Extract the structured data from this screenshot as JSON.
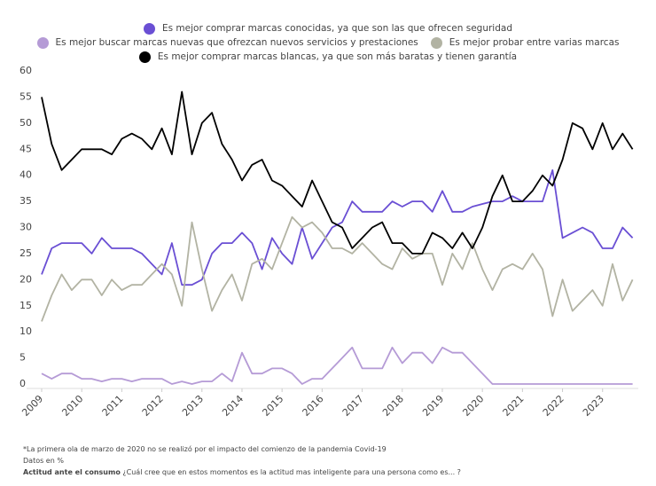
{
  "chart_data": {
    "type": "line",
    "x": [
      2009,
      2009.25,
      2009.5,
      2009.75,
      2010,
      2010.25,
      2010.5,
      2010.75,
      2011,
      2011.25,
      2011.5,
      2011.75,
      2012,
      2012.25,
      2012.5,
      2012.75,
      2013,
      2013.25,
      2013.5,
      2013.75,
      2014,
      2014.25,
      2014.5,
      2014.75,
      2015,
      2015.25,
      2015.5,
      2015.75,
      2016,
      2016.25,
      2016.5,
      2016.75,
      2017,
      2017.25,
      2017.5,
      2017.75,
      2018,
      2018.25,
      2018.5,
      2018.75,
      2019,
      2019.25,
      2019.5,
      2019.75,
      2020,
      2020.25,
      2020.5,
      2020.75,
      2021,
      2021.25,
      2021.5,
      2021.75,
      2022,
      2022.25,
      2022.5,
      2022.75,
      2023,
      2023.25,
      2023.5,
      2023.75
    ],
    "series": [
      {
        "name": "Es mejor comprar marcas conocidas, ya que son las que ofrecen seguridad",
        "color": "#6a4fd4",
        "values": [
          21,
          26,
          27,
          27,
          27,
          25,
          28,
          26,
          26,
          26,
          25,
          23,
          21,
          27,
          19,
          19,
          20,
          25,
          27,
          27,
          29,
          27,
          22,
          28,
          25,
          23,
          30,
          24,
          27,
          30,
          31,
          35,
          33,
          33,
          33,
          35,
          34,
          35,
          35,
          33,
          37,
          33,
          33,
          34,
          34.5,
          35,
          35,
          36,
          35,
          35,
          35,
          41,
          28,
          29,
          30,
          29,
          26,
          26,
          30,
          28
        ]
      },
      {
        "name": "Es mejor buscar marcas nuevas que ofrezcan nuevos servicios y prestaciones",
        "color": "#b59bd6",
        "values": [
          2,
          1,
          2,
          2,
          1,
          1,
          0.5,
          1,
          1,
          0.5,
          1,
          1,
          1,
          0,
          0.5,
          0,
          0.5,
          0.5,
          2,
          0.5,
          6,
          2,
          2,
          3,
          3,
          2,
          0,
          1,
          1,
          3,
          5,
          7,
          3,
          3,
          3,
          7,
          4,
          6,
          6,
          4,
          7,
          6,
          6,
          4,
          2,
          0,
          0,
          0,
          0,
          0,
          0,
          0,
          0,
          0,
          0,
          0,
          0,
          0,
          0,
          0
        ]
      },
      {
        "name": "Es mejor probar entre varias marcas",
        "color": "#b2b3a3",
        "values": [
          12,
          17,
          21,
          18,
          20,
          20,
          17,
          20,
          18,
          19,
          19,
          21,
          23,
          21,
          15,
          31,
          22,
          14,
          18,
          21,
          16,
          23,
          24,
          22,
          27,
          32,
          30,
          31,
          29,
          26,
          26,
          25,
          27,
          25,
          23,
          22,
          26,
          24,
          25,
          25,
          19,
          25,
          22,
          27,
          22,
          18,
          22,
          23,
          22,
          25,
          22,
          13,
          20,
          14,
          16,
          18,
          15,
          23,
          16,
          20
        ]
      },
      {
        "name": "Es mejor comprar marcas blancas, ya que son más baratas y tienen garantía",
        "color": "#000000",
        "values": [
          55,
          46,
          41,
          43,
          45,
          45,
          45,
          44,
          47,
          48,
          47,
          45,
          49,
          44,
          56,
          44,
          50,
          52,
          46,
          43,
          39,
          42,
          43,
          39,
          38,
          36,
          34,
          39,
          35,
          31,
          30,
          26,
          28,
          30,
          31,
          27,
          27,
          25,
          25,
          29,
          28,
          26,
          29,
          26,
          30,
          36,
          40,
          35,
          35,
          37,
          40,
          38,
          43,
          50,
          49,
          45,
          50,
          45,
          48,
          45
        ]
      }
    ],
    "xlim": [
      2009,
      2023.78
    ],
    "xticks": [
      2009,
      2010,
      2011,
      2012,
      2013,
      2014,
      2015,
      2016,
      2017,
      2018,
      2019,
      2020,
      2021,
      2022,
      2023
    ],
    "ylim": [
      0,
      60
    ],
    "yticks": [
      0,
      5,
      10,
      15,
      20,
      25,
      30,
      35,
      40,
      45,
      50,
      55,
      60
    ],
    "grid": false,
    "footnote": "*La primera ola de marzo de 2020 no se realizó por el impacto del comienzo de la pandemia Covid-19",
    "data_note": "Datos en %",
    "question_label": "Actitud ante el consumo",
    "question": "¿Cuál cree que en estos momentos es la actitud mas inteligente para una persona como es... ?"
  }
}
